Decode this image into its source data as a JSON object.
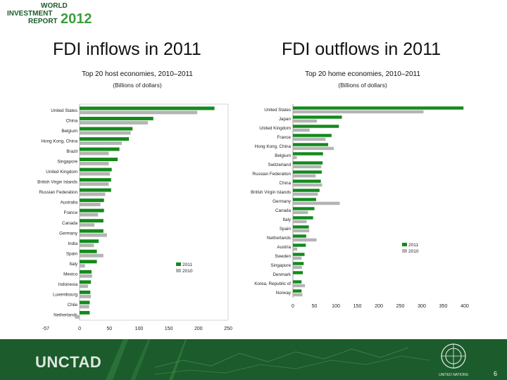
{
  "brand": {
    "line1": "WORLD",
    "line2": "INVESTMENT",
    "line3": "REPORT",
    "year": "2012"
  },
  "left": {
    "headline": "FDI inflows in 2011",
    "subtitle": "Top 20 host economies, 2010–2011",
    "unit": "(Billions of dollars)"
  },
  "right": {
    "headline": "FDI outflows in 2011",
    "subtitle": "Top 20 home economies, 2010–2011",
    "unit": "(Billions of dollars)"
  },
  "footer": {
    "logo_text": "UNCTAD",
    "page_number": "6",
    "emblem_label": "UNITED NATIONS"
  },
  "colors": {
    "series_2011": "#138a1c",
    "series_2010": "#b4b4b4",
    "footer_bg": "#1c5b2c"
  },
  "chart_data": [
    {
      "type": "bar",
      "orientation": "horizontal",
      "categories": [
        "United States",
        "China",
        "Belgium",
        "Hong Kong, China",
        "Brazil",
        "Singapore",
        "United Kingdom",
        "British Virgin Islands",
        "Russian Federation",
        "Australia",
        "France",
        "Canada",
        "Germany",
        "India",
        "Spain",
        "Italy",
        "Mexico",
        "Indonesia",
        "Luxembourg",
        "Chile",
        "Netherlands"
      ],
      "series": [
        {
          "name": "2011",
          "values": [
            227,
            124,
            89,
            83,
            67,
            64,
            54,
            53,
            53,
            41,
            41,
            40,
            40,
            32,
            29,
            29,
            20,
            19,
            18,
            17,
            17
          ]
        },
        {
          "name": "2010",
          "values": [
            198,
            115,
            86,
            71,
            49,
            49,
            51,
            49,
            43,
            35,
            31,
            25,
            46,
            24,
            40,
            9,
            21,
            14,
            19,
            16,
            -8
          ]
        }
      ],
      "xticks": [
        "-57",
        "0",
        "50",
        "100",
        "150",
        "200",
        "250"
      ],
      "xlim": [
        -57,
        250
      ],
      "legend_position": "inside-right"
    },
    {
      "type": "bar",
      "orientation": "horizontal",
      "categories": [
        "United States",
        "Japan",
        "United Kingdom",
        "France",
        "Hong Kong, China",
        "Belgium",
        "Switzerland",
        "Russian Federation",
        "China",
        "British Virgin Islands",
        "Germany",
        "Canada",
        "Italy",
        "Spain",
        "Netherlands",
        "Austria",
        "Sweden",
        "Singapore",
        "Denmark",
        "Korea, Republic of",
        "Norway"
      ],
      "series": [
        {
          "name": "2011",
          "values": [
            397,
            114,
            107,
            90,
            82,
            70,
            69,
            67,
            65,
            62,
            54,
            50,
            47,
            37,
            31,
            30,
            27,
            25,
            23,
            20,
            20
          ]
        },
        {
          "name": "2010",
          "values": [
            304,
            56,
            39,
            76,
            95,
            9,
            66,
            53,
            68,
            58,
            109,
            35,
            32,
            38,
            55,
            10,
            20,
            21,
            1,
            28,
            22
          ]
        }
      ],
      "xticks": [
        "0",
        "50",
        "100",
        "150",
        "200",
        "250",
        "300",
        "350",
        "400"
      ],
      "xlim": [
        0,
        400
      ],
      "legend_position": "inside-right"
    }
  ]
}
